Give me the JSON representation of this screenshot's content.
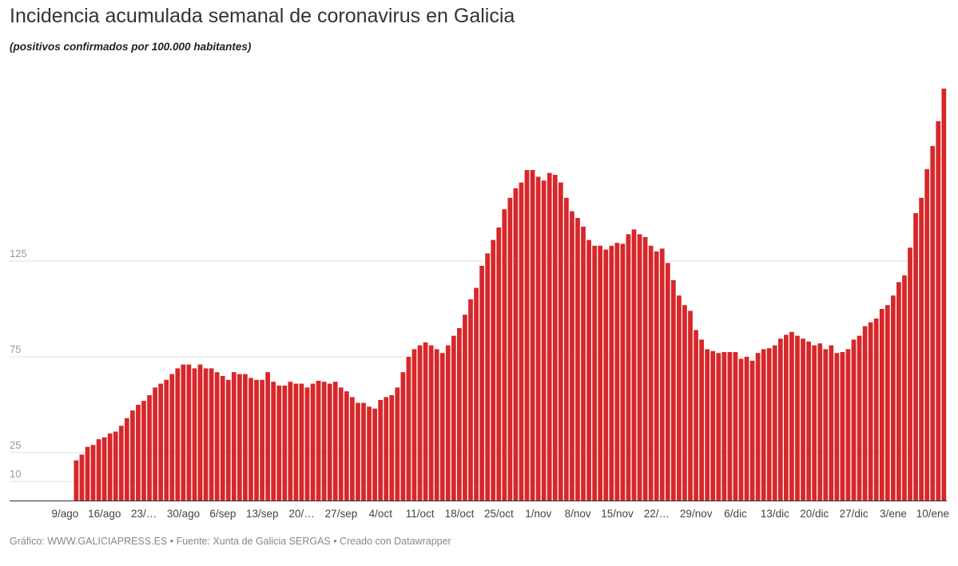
{
  "title": "Incidencia acumulada semanal de coronavirus en Galicia",
  "subtitle": "(positivos confirmados por 100.000 habitantes)",
  "footer": "Gráfico: WWW.GALICIAPRESS.ES • Fuente: Xunta de Galicia SERGAS • Creado con Datawrapper",
  "colors": {
    "bar": "#d7272a",
    "grid": "#e2e2e2",
    "axis": "#333333"
  },
  "chart_data": {
    "type": "bar",
    "title": "Incidencia acumulada semanal de coronavirus en Galicia",
    "subtitle": "(positivos confirmados por 100.000 habitantes)",
    "xlabel": "",
    "ylabel": "",
    "ylim": [
      0,
      215
    ],
    "grid": true,
    "yticks": [
      10,
      25,
      75,
      125
    ],
    "xtick_labels": [
      "9/ago",
      "16/ago",
      "23/…",
      "30/ago",
      "6/sep",
      "13/sep",
      "20/…",
      "27/sep",
      "4/oct",
      "11/oct",
      "18/oct",
      "25/oct",
      "1/nov",
      "8/nov",
      "15/nov",
      "22/…",
      "29/nov",
      "6/dic",
      "13/dic",
      "20/dic",
      "27/dic",
      "3/ene",
      "10/ene"
    ],
    "x": [
      "11/ago",
      "12/ago",
      "13/ago",
      "14/ago",
      "15/ago",
      "16/ago",
      "17/ago",
      "18/ago",
      "19/ago",
      "20/ago",
      "21/ago",
      "22/ago",
      "23/ago",
      "24/ago",
      "25/ago",
      "26/ago",
      "27/ago",
      "28/ago",
      "29/ago",
      "30/ago",
      "31/ago",
      "1/sep",
      "2/sep",
      "3/sep",
      "4/sep",
      "5/sep",
      "6/sep",
      "7/sep",
      "8/sep",
      "9/sep",
      "10/sep",
      "11/sep",
      "12/sep",
      "13/sep",
      "14/sep",
      "15/sep",
      "16/sep",
      "17/sep",
      "18/sep",
      "19/sep",
      "20/sep",
      "21/sep",
      "22/sep",
      "23/sep",
      "24/sep",
      "25/sep",
      "26/sep",
      "27/sep",
      "28/sep",
      "29/sep",
      "30/sep",
      "1/oct",
      "2/oct",
      "3/oct",
      "4/oct",
      "5/oct",
      "6/oct",
      "7/oct",
      "8/oct",
      "9/oct",
      "10/oct",
      "11/oct",
      "12/oct",
      "13/oct",
      "14/oct",
      "15/oct",
      "16/oct",
      "17/oct",
      "18/oct",
      "19/oct",
      "20/oct",
      "21/oct",
      "22/oct",
      "23/oct",
      "24/oct",
      "25/oct",
      "26/oct",
      "27/oct",
      "28/oct",
      "29/oct",
      "30/oct",
      "31/oct",
      "1/nov",
      "2/nov",
      "3/nov",
      "4/nov",
      "5/nov",
      "6/nov",
      "7/nov",
      "8/nov",
      "9/nov",
      "10/nov",
      "11/nov",
      "12/nov",
      "13/nov",
      "14/nov",
      "15/nov",
      "16/nov",
      "17/nov",
      "18/nov",
      "19/nov",
      "20/nov",
      "21/nov",
      "22/nov",
      "23/nov",
      "24/nov",
      "25/nov",
      "26/nov",
      "27/nov",
      "28/nov",
      "29/nov",
      "30/nov",
      "1/dic",
      "2/dic",
      "3/dic",
      "4/dic",
      "5/dic",
      "6/dic",
      "7/dic",
      "8/dic",
      "9/dic",
      "10/dic",
      "11/dic",
      "12/dic",
      "13/dic",
      "14/dic",
      "15/dic",
      "16/dic",
      "17/dic",
      "18/dic",
      "19/dic",
      "20/dic",
      "21/dic",
      "22/dic",
      "23/dic",
      "24/dic",
      "25/dic",
      "26/dic",
      "27/dic",
      "28/dic",
      "29/dic",
      "30/dic",
      "31/dic",
      "1/ene",
      "2/ene",
      "3/ene",
      "4/ene",
      "5/ene",
      "6/ene",
      "7/ene",
      "8/ene",
      "9/ene",
      "10/ene",
      "11/ene",
      "12/ene"
    ],
    "values": [
      21,
      24,
      28,
      29,
      32,
      33,
      35,
      36,
      39,
      43,
      47,
      50,
      52,
      55,
      59,
      61,
      63,
      66,
      69,
      71,
      71,
      69,
      71,
      69,
      69,
      67,
      65,
      63,
      67,
      66,
      66,
      64,
      63,
      63,
      67,
      62,
      60,
      60,
      62,
      61,
      61,
      59,
      61,
      62.5,
      62,
      61,
      62,
      59,
      57,
      54,
      51,
      51,
      49,
      48,
      52.5,
      54,
      55,
      59,
      67,
      75,
      79,
      81,
      82.5,
      81,
      79,
      77,
      81,
      86,
      90,
      97,
      105,
      111,
      122.5,
      129,
      136,
      142.5,
      152,
      158,
      163,
      166,
      172.5,
      172.5,
      169,
      167,
      171,
      170,
      166,
      158,
      151,
      147.5,
      143,
      136,
      133,
      133,
      131,
      133,
      134.5,
      134,
      139,
      141.5,
      139,
      137.5,
      133,
      130,
      131.5,
      124,
      115,
      107,
      102,
      99,
      89,
      84,
      79,
      78,
      77,
      77.5,
      77.5,
      77.5,
      74,
      75,
      73,
      77,
      79,
      79.5,
      81,
      84.5,
      86.5,
      88,
      86,
      84.5,
      83,
      81,
      82,
      79,
      81,
      77,
      77.5,
      79,
      84,
      86,
      91,
      93,
      95,
      100,
      102,
      107,
      114,
      117.5,
      132,
      150,
      158,
      173,
      185,
      198,
      215
    ]
  }
}
